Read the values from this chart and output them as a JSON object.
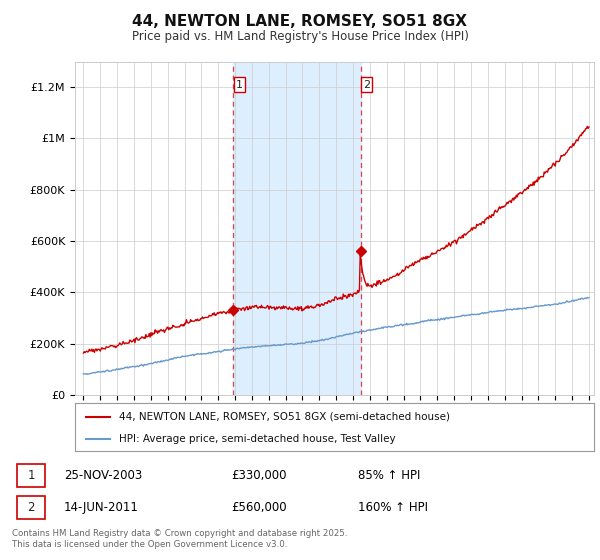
{
  "title": "44, NEWTON LANE, ROMSEY, SO51 8GX",
  "subtitle": "Price paid vs. HM Land Registry's House Price Index (HPI)",
  "ylim": [
    0,
    1300000
  ],
  "yticks": [
    0,
    200000,
    400000,
    600000,
    800000,
    1000000,
    1200000
  ],
  "ytick_labels": [
    "£0",
    "£200K",
    "£400K",
    "£600K",
    "£800K",
    "£1M",
    "£1.2M"
  ],
  "x_start_year": 1995,
  "x_end_year": 2025,
  "purchase1_year": 2003.9,
  "purchase1_date": "25-NOV-2003",
  "purchase1_price": 330000,
  "purchase1_label": "85% ↑ HPI",
  "purchase2_year": 2011.45,
  "purchase2_date": "14-JUN-2011",
  "purchase2_price": 560000,
  "purchase2_label": "160% ↑ HPI",
  "legend_red": "44, NEWTON LANE, ROMSEY, SO51 8GX (semi-detached house)",
  "legend_blue": "HPI: Average price, semi-detached house, Test Valley",
  "footer": "Contains HM Land Registry data © Crown copyright and database right 2025.\nThis data is licensed under the Open Government Licence v3.0.",
  "red_color": "#cc0000",
  "blue_color": "#6699cc",
  "shade_color": "#ddeeff",
  "background_color": "#ffffff",
  "grid_color": "#cccccc",
  "dashed_color": "#dd4444"
}
